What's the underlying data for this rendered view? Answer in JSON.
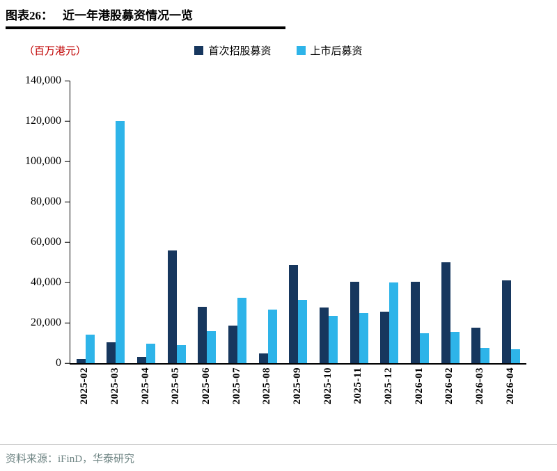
{
  "header": {
    "title_prefix": "图表26：",
    "title": "近一年港股募资情况一览"
  },
  "unit_label": "（百万港元）",
  "legend": [
    {
      "label": "首次招股募资",
      "color": "#17375e"
    },
    {
      "label": "上市后募资",
      "color": "#2eb4e9"
    }
  ],
  "source": {
    "prefix": "资料来源：",
    "text": "iFinD，华泰研究"
  },
  "chart_data": {
    "type": "bar",
    "title": "近一年港股募资情况一览",
    "xlabel": "",
    "ylabel": "（百万港元）",
    "legend_position": "top-center",
    "grid": false,
    "categories": [
      "2025-02",
      "2025-03",
      "2025-04",
      "2025-05",
      "2025-06",
      "2025-07",
      "2025-08",
      "2025-09",
      "2025-10",
      "2025-11",
      "2025-12",
      "2026-01",
      "2026-02",
      "2026-03",
      "2026-04"
    ],
    "series": [
      {
        "name": "首次招股募资",
        "color": "#17375e",
        "values": [
          2000,
          10500,
          3000,
          56000,
          28000,
          18500,
          5000,
          48500,
          27500,
          40500,
          25500,
          40500,
          50000,
          17500,
          41000
        ]
      },
      {
        "name": "上市后募资",
        "color": "#2eb4e9",
        "values": [
          14000,
          120000,
          9500,
          9000,
          16000,
          32500,
          26500,
          31500,
          23500,
          25000,
          40000,
          15000,
          15500,
          7500,
          7000
        ]
      }
    ],
    "ylim": [
      0,
      140000
    ],
    "y_ticks": [
      0,
      20000,
      40000,
      60000,
      80000,
      100000,
      120000,
      140000
    ],
    "y_tick_labels": [
      "0",
      "20,000",
      "40,000",
      "60,000",
      "80,000",
      "100,000",
      "120,000",
      "140,000"
    ]
  }
}
